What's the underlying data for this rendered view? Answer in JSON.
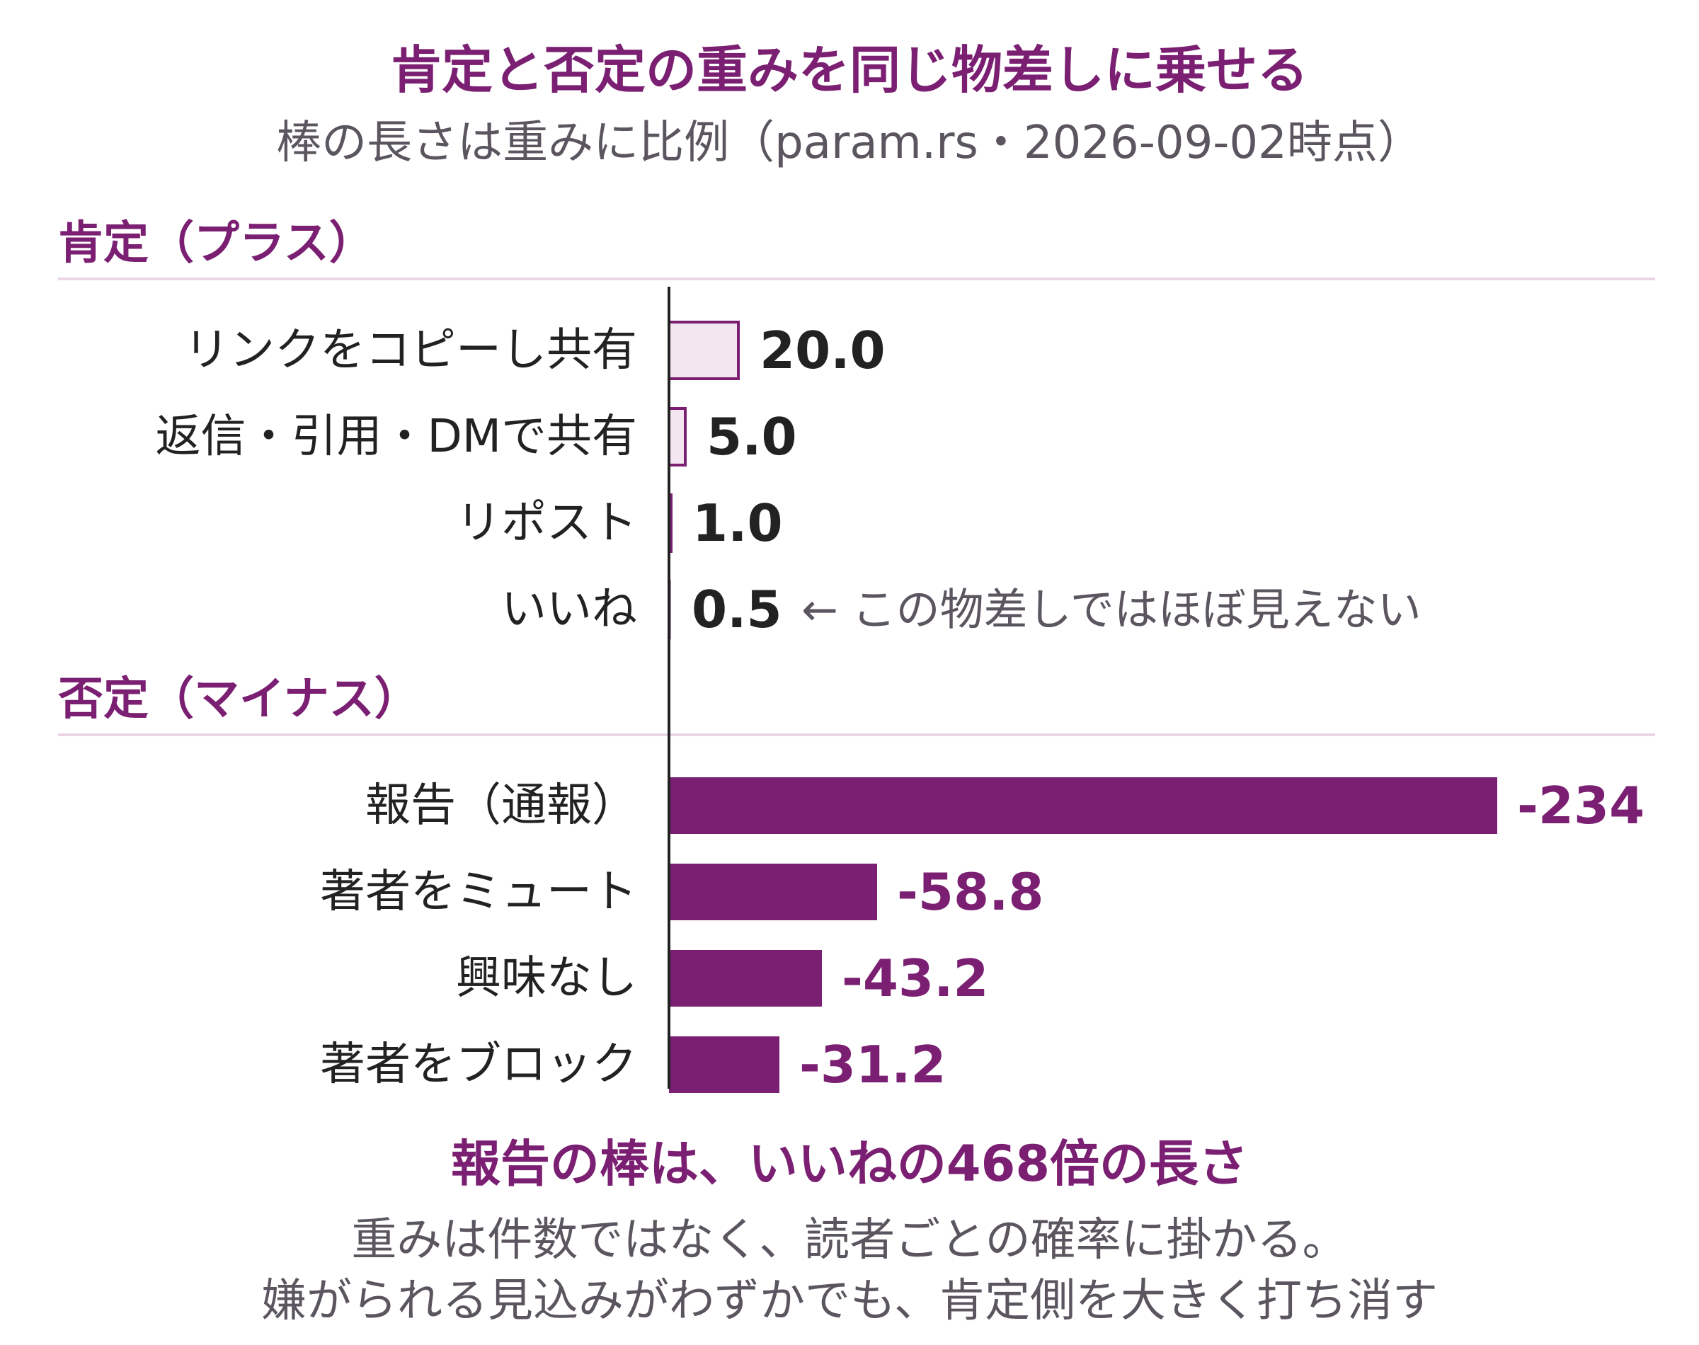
{
  "header": {
    "title": "肯定と否定の重みを同じ物差しに乗せる",
    "subtitle": "棒の長さは重みに比例（param.rs・2026-09-02時点）"
  },
  "sections": {
    "positive": "肯定（プラス）",
    "negative": "否定（マイナス）"
  },
  "annotation": "← この物差しではほぼ見えない",
  "footer": {
    "headline": "報告の棒は、いいねの468倍の長さ",
    "line1": "重みは件数ではなく、読者ごとの確率に掛かる。",
    "line2": "嫌がられる見込みがわずかでも、肯定側を大きく打ち消す"
  },
  "colors": {
    "accent": "#7b1f72",
    "positive_fill": "#f3e6f1",
    "negative_fill": "#7b1f72",
    "text": "#222222",
    "muted": "#5b5560",
    "rule": "#ead6e6"
  },
  "chart_data": {
    "type": "bar",
    "orientation": "horizontal",
    "scale": "bar length proportional to absolute weight",
    "groups": [
      {
        "name": "肯定（プラス）",
        "categories": [
          "リンクをコピーし共有",
          "返信・引用・DMで共有",
          "リポスト",
          "いいね"
        ],
        "values": [
          20.0,
          5.0,
          1.0,
          0.5
        ],
        "labels": [
          "20.0",
          "5.0",
          "1.0",
          "0.5"
        ]
      },
      {
        "name": "否定（マイナス）",
        "categories": [
          "報告（通報）",
          "著者をミュート",
          "興味なし",
          "著者をブロック"
        ],
        "values": [
          -234,
          -58.8,
          -43.2,
          -31.2
        ],
        "labels": [
          "-234",
          "-58.8",
          "-43.2",
          "-31.2"
        ]
      }
    ]
  }
}
